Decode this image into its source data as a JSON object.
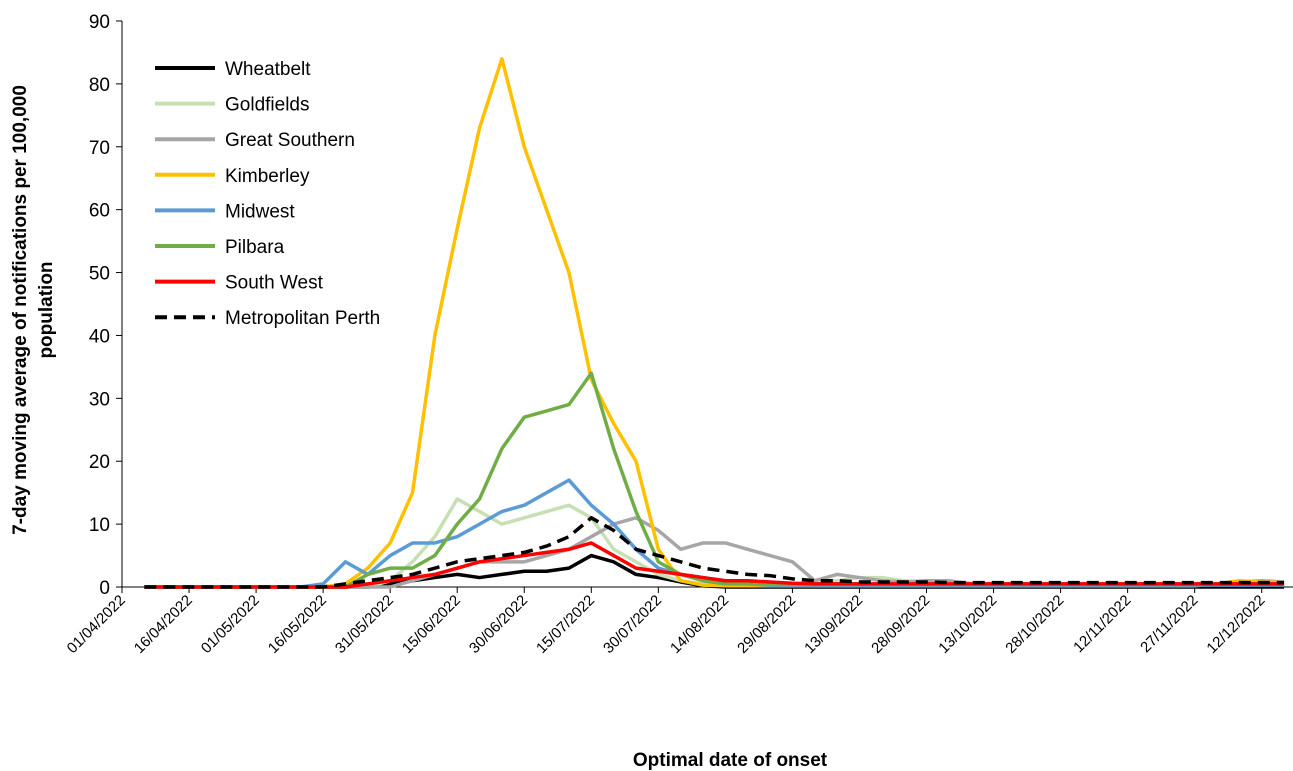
{
  "chart_data": {
    "type": "line",
    "y_label_lines": [
      "7-day moving average of notifications per 100,000",
      "population"
    ],
    "x_label": "Optimal date of onset",
    "x": [
      "06/04/2022",
      "11/04/2022",
      "16/04/2022",
      "21/04/2022",
      "26/04/2022",
      "01/05/2022",
      "06/05/2022",
      "11/05/2022",
      "16/05/2022",
      "21/05/2022",
      "26/05/2022",
      "31/05/2022",
      "05/06/2022",
      "10/06/2022",
      "15/06/2022",
      "20/06/2022",
      "25/06/2022",
      "30/06/2022",
      "05/07/2022",
      "10/07/2022",
      "15/07/2022",
      "20/07/2022",
      "25/07/2022",
      "30/07/2022",
      "04/08/2022",
      "09/08/2022",
      "14/08/2022",
      "19/08/2022",
      "24/08/2022",
      "29/08/2022",
      "03/09/2022",
      "08/09/2022",
      "13/09/2022",
      "18/09/2022",
      "23/09/2022",
      "28/09/2022",
      "03/10/2022",
      "08/10/2022",
      "13/10/2022",
      "18/10/2022",
      "23/10/2022",
      "28/10/2022",
      "02/11/2022",
      "07/11/2022",
      "12/11/2022",
      "17/11/2022",
      "22/11/2022",
      "27/11/2022",
      "02/12/2022",
      "07/12/2022",
      "12/12/2022",
      "17/12/2022"
    ],
    "xlim": [
      "01/04/2022",
      "19/12/2022"
    ],
    "xticks": [
      "01/04/2022",
      "16/04/2022",
      "01/05/2022",
      "16/05/2022",
      "31/05/2022",
      "15/06/2022",
      "30/06/2022",
      "15/07/2022",
      "30/07/2022",
      "14/08/2022",
      "29/08/2022",
      "13/09/2022",
      "28/09/2022",
      "13/10/2022",
      "28/10/2022",
      "12/11/2022",
      "27/11/2022",
      "12/12/2022"
    ],
    "ylim": [
      0,
      90
    ],
    "yticks": [
      0,
      10,
      20,
      30,
      40,
      50,
      60,
      70,
      80,
      90
    ],
    "legend": "top-left",
    "series": [
      {
        "name": "Wheatbelt",
        "color": "#000000",
        "dashed": false,
        "values": [
          0,
          0,
          0,
          0,
          0,
          0,
          0,
          0,
          0,
          0,
          0,
          0.5,
          1,
          1.5,
          2,
          1.5,
          2,
          2.5,
          2.5,
          3,
          5,
          4,
          2,
          1.5,
          0.8,
          0.2,
          0,
          0,
          0,
          0,
          0,
          0,
          0,
          0,
          0,
          0,
          0,
          0,
          0,
          0,
          0,
          0,
          0,
          0,
          0,
          0,
          0,
          0,
          0,
          0,
          0,
          0
        ]
      },
      {
        "name": "Goldfields",
        "color": "#c6e0b4",
        "dashed": false,
        "values": [
          0,
          0,
          0,
          0,
          0,
          0,
          0,
          0,
          0,
          0,
          0,
          1,
          4,
          8,
          14,
          12,
          10,
          11,
          12,
          13,
          11,
          6,
          4,
          2,
          1,
          0.5,
          0.5,
          0.5,
          0.5,
          0.5,
          0.8,
          1,
          1.5,
          1.5,
          1,
          0.8,
          0.8,
          0.6,
          0.5,
          0.5,
          0.5,
          0.5,
          0.5,
          0.5,
          0.5,
          0.5,
          0.5,
          0.5,
          0.5,
          0.5,
          0.5,
          0.5
        ]
      },
      {
        "name": "Great Southern",
        "color": "#a6a6a6",
        "dashed": false,
        "values": [
          0,
          0,
          0,
          0,
          0,
          0,
          0,
          0,
          0,
          0,
          0,
          0,
          1,
          2,
          3,
          4,
          4,
          4,
          5,
          6,
          8,
          10,
          11,
          9,
          6,
          7,
          7,
          6,
          5,
          4,
          1,
          2,
          1.5,
          1,
          0.8,
          1,
          1,
          0.5,
          0.5,
          0.5,
          0.5,
          0.5,
          0.5,
          0.5,
          0.5,
          0.5,
          0.5,
          0.5,
          0.5,
          0.8,
          1,
          0.8
        ]
      },
      {
        "name": "Kimberley",
        "color": "#ffc000",
        "dashed": false,
        "values": [
          0,
          0,
          0,
          0,
          0,
          0,
          0,
          0,
          0,
          0.5,
          3,
          7,
          15,
          40,
          57,
          73,
          84,
          70,
          60,
          50,
          33,
          26,
          20,
          6,
          1,
          0.3,
          0.2,
          0.2,
          0.2,
          0.2,
          0.2,
          0.2,
          0.2,
          0.2,
          0.2,
          0.2,
          0.2,
          0.2,
          0.2,
          0.2,
          0.2,
          0.2,
          0.2,
          0.2,
          0.2,
          0.2,
          0.2,
          0.2,
          0.5,
          1,
          0.8,
          0.7
        ]
      },
      {
        "name": "Midwest",
        "color": "#5b9bd5",
        "dashed": false,
        "values": [
          0,
          0,
          0,
          0,
          0,
          0,
          0,
          0,
          0.5,
          4,
          2,
          5,
          7,
          7,
          8,
          10,
          12,
          13,
          15,
          17,
          13,
          10,
          6,
          3,
          2,
          1.5,
          1,
          0.5,
          0.3,
          0.3,
          0.3,
          0.3,
          0.3,
          0.3,
          0.3,
          0.3,
          0.3,
          0.3,
          0.3,
          0.3,
          0.3,
          0.3,
          0.3,
          0.3,
          0.3,
          0.3,
          0.3,
          0.3,
          0.3,
          0.3,
          0.3,
          0.3
        ]
      },
      {
        "name": "Pilbara",
        "color": "#70ad47",
        "dashed": false,
        "values": [
          0,
          0,
          0,
          0,
          0,
          0,
          0,
          0,
          0,
          0,
          2,
          3,
          3,
          5,
          10,
          14,
          22,
          27,
          28,
          29,
          34,
          22,
          12,
          4,
          2,
          1,
          0.5,
          0.5,
          0.5,
          0.5,
          0.5,
          0.5,
          0.5,
          0.5,
          0.5,
          0.5,
          0.5,
          0.5,
          0.5,
          0.5,
          0.5,
          0.5,
          0.5,
          0.5,
          0.5,
          0.5,
          0.5,
          0.5,
          0.5,
          0.5,
          0.5,
          0.5
        ]
      },
      {
        "name": "South West",
        "color": "#ff0000",
        "dashed": false,
        "values": [
          0,
          0,
          0,
          0,
          0,
          0,
          0,
          0,
          0,
          0,
          0.5,
          1,
          1.5,
          2,
          3,
          4,
          4.5,
          5,
          5.5,
          6,
          7,
          5,
          3,
          2.5,
          2,
          1.5,
          1,
          1,
          0.8,
          0.6,
          0.5,
          0.5,
          0.5,
          0.5,
          0.5,
          0.5,
          0.5,
          0.5,
          0.5,
          0.5,
          0.5,
          0.5,
          0.5,
          0.5,
          0.5,
          0.5,
          0.5,
          0.5,
          0.5,
          0.5,
          0.5,
          0.5
        ]
      },
      {
        "name": "Metropolitan Perth",
        "color": "#000000",
        "dashed": true,
        "values": [
          0,
          0,
          0,
          0,
          0,
          0,
          0,
          0,
          0,
          0.5,
          1,
          1.5,
          2,
          3,
          4,
          4.5,
          5,
          5.5,
          6.5,
          8,
          11,
          9,
          6,
          5,
          4,
          3,
          2.5,
          2,
          1.8,
          1.3,
          1,
          1,
          0.8,
          0.8,
          0.8,
          0.8,
          0.7,
          0.7,
          0.7,
          0.7,
          0.7,
          0.7,
          0.7,
          0.7,
          0.7,
          0.7,
          0.7,
          0.7,
          0.7,
          0.7,
          0.7,
          0.7
        ]
      }
    ]
  }
}
